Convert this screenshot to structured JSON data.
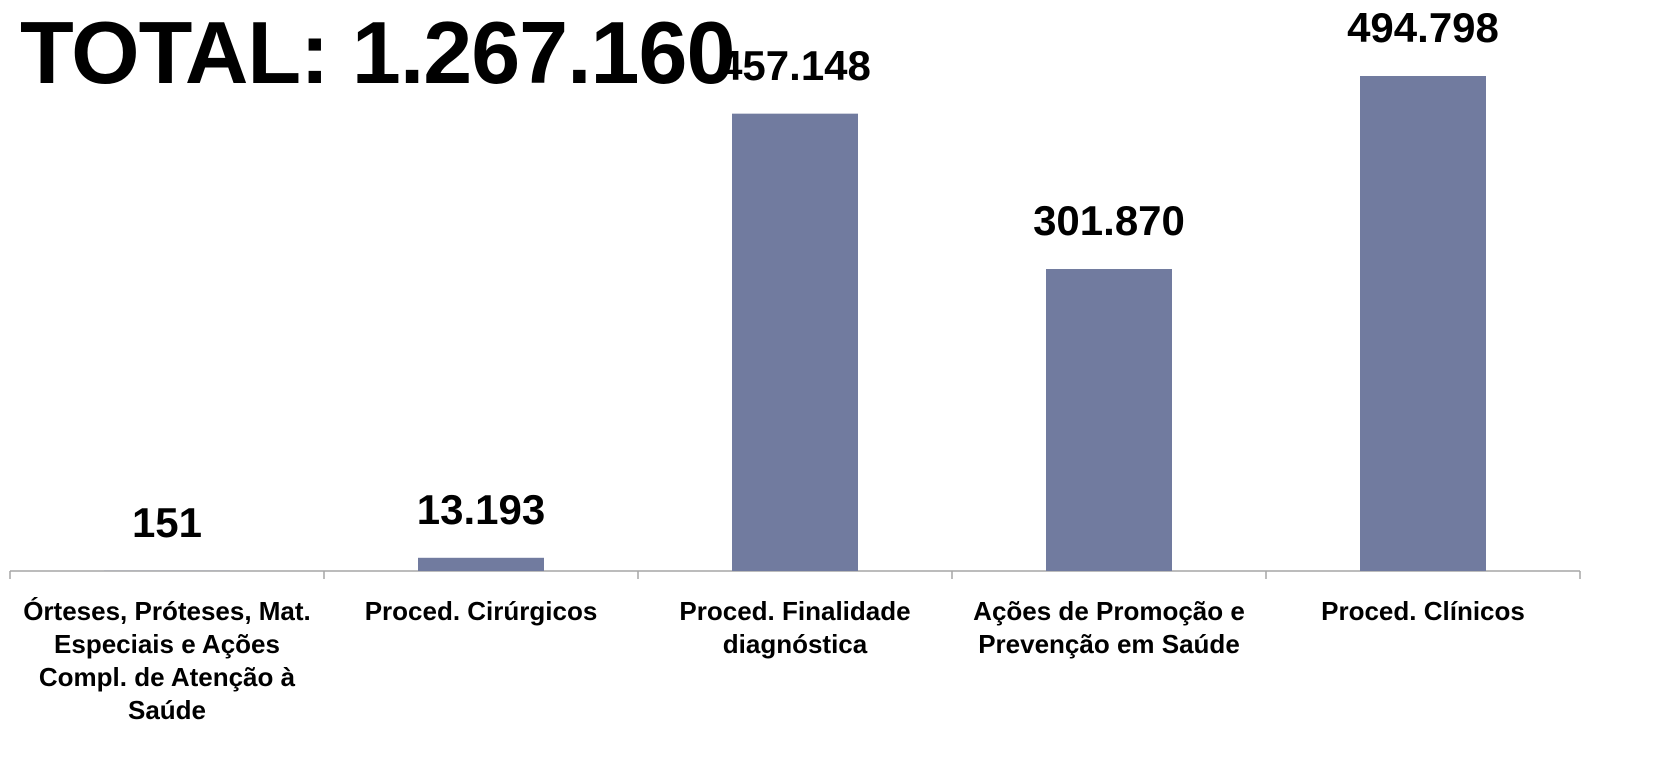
{
  "chart_data": {
    "type": "bar",
    "title": "TOTAL: 1.267.160",
    "categories": [
      "Órteses, Próteses, Mat. Especiais e Ações Compl. de Atenção à Saúde",
      "Proced. Cirúrgicos",
      "Proced. Finalidade diagnóstica",
      "Ações de Promoção e Prevenção em Saúde",
      "Proced. Clínicos"
    ],
    "values": [
      151,
      13193,
      457148,
      301870,
      494798
    ],
    "value_labels": [
      "151",
      "13.193",
      "457.148",
      "301.870",
      "494.798"
    ],
    "color": "#717b9f"
  }
}
